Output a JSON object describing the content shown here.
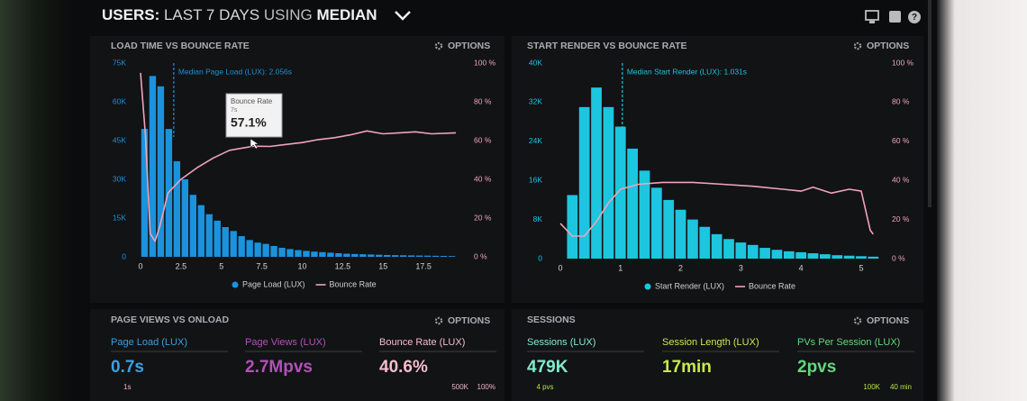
{
  "header": {
    "prefix": "USERS:",
    "range": "LAST 7 DAYS",
    "connector": "USING",
    "method": "MEDIAN"
  },
  "options_label": "OPTIONS",
  "chart_data": [
    {
      "type": "histogram",
      "title": "LOAD TIME VS BOUNCE RATE",
      "bins": [
        0,
        0.5,
        1,
        1.5,
        2,
        2.5,
        3,
        3.5,
        4,
        4.5,
        5,
        5.5,
        6,
        6.5,
        7,
        7.5,
        8,
        8.5,
        9,
        9.5,
        10,
        10.5,
        11,
        11.5,
        12,
        12.5,
        13,
        13.5,
        14,
        14.5,
        15,
        15.5,
        16,
        16.5,
        17,
        17.5,
        18,
        18.5,
        19,
        19.5
      ],
      "series": [
        {
          "name": "Page Load (LUX)",
          "color": "#1b92dc",
          "values": [
            49500,
            70000,
            66000,
            49500,
            37000,
            30000,
            24000,
            20000,
            16500,
            14000,
            11500,
            10000,
            8000,
            6500,
            5500,
            5000,
            4200,
            3500,
            3000,
            2600,
            2300,
            2000,
            1800,
            1600,
            1400,
            1200,
            1100,
            1000,
            900,
            800,
            700,
            650,
            600,
            550,
            500,
            450,
            400,
            350,
            300
          ]
        },
        {
          "name": "Bounce Rate",
          "color": "#f0a4b8",
          "axis": "y2",
          "x": [
            0,
            0.3,
            0.6,
            0.9,
            1.2,
            1.7,
            2.5,
            3.5,
            4.5,
            5.5,
            7,
            8,
            9,
            10,
            11,
            12,
            13,
            14,
            15,
            16,
            17,
            18,
            19.5
          ],
          "values": [
            95,
            63,
            12,
            8,
            16,
            33,
            40,
            46,
            51,
            55,
            57.1,
            57,
            58,
            59,
            60.5,
            61.5,
            63,
            65,
            63.5,
            64,
            64.5,
            63.5,
            64
          ]
        }
      ],
      "xlim": [
        -0.5,
        20
      ],
      "xticks": [
        0,
        2.5,
        5,
        7.5,
        10,
        12.5,
        15,
        17.5
      ],
      "ylim": [
        0,
        75000
      ],
      "yticks": [
        {
          "value": 0,
          "label": "0"
        },
        {
          "value": 15000,
          "label": "15K"
        },
        {
          "value": 30000,
          "label": "30K"
        },
        {
          "value": 45000,
          "label": "45K"
        },
        {
          "value": 60000,
          "label": "60K"
        },
        {
          "value": 75000,
          "label": "75K"
        }
      ],
      "y2lim": [
        0,
        100
      ],
      "y2ticks": [
        {
          "value": 0,
          "label": "0 %"
        },
        {
          "value": 20,
          "label": "20 %"
        },
        {
          "value": 40,
          "label": "40 %"
        },
        {
          "value": 60,
          "label": "60 %"
        },
        {
          "value": 80,
          "label": "80 %"
        },
        {
          "value": 100,
          "label": "100 %"
        }
      ],
      "median": 2.056,
      "median_label": "Median Page Load (LUX): 2.056s",
      "tooltip": {
        "title": "Bounce Rate",
        "subtitle": "7s",
        "value": "57.1%"
      },
      "grid": false
    },
    {
      "type": "histogram",
      "title": "START RENDER VS BOUNCE RATE",
      "bins": [
        0.1,
        0.3,
        0.5,
        0.7,
        0.9,
        1.1,
        1.3,
        1.5,
        1.7,
        1.9,
        2.1,
        2.3,
        2.5,
        2.7,
        2.9,
        3.1,
        3.3,
        3.5,
        3.7,
        3.9,
        4.1,
        4.3,
        4.5,
        4.7,
        4.9,
        5.1,
        5.3
      ],
      "series": [
        {
          "name": "Start Render (LUX)",
          "color": "#1cc6de",
          "values": [
            13000,
            31000,
            35000,
            31000,
            27000,
            22500,
            18000,
            14500,
            12000,
            10000,
            8000,
            6500,
            5000,
            4000,
            3300,
            2800,
            2200,
            1800,
            1500,
            1300,
            1100,
            900,
            700,
            600,
            500,
            400
          ]
        },
        {
          "name": "Bounce Rate",
          "color": "#f0a4b8",
          "axis": "y2",
          "x": [
            0,
            0.2,
            0.4,
            0.6,
            0.8,
            1.0,
            1.3,
            1.7,
            2.2,
            2.7,
            3.2,
            3.7,
            4.0,
            4.2,
            4.5,
            4.8,
            5.0,
            5.15,
            5.2
          ],
          "values": [
            18,
            11.5,
            11.5,
            19,
            28.5,
            35.5,
            38,
            39,
            39,
            38,
            37,
            35.5,
            34.5,
            36.5,
            33.5,
            35.5,
            34.5,
            14.5,
            12.5
          ]
        }
      ],
      "xlim": [
        -0.2,
        5.3
      ],
      "xticks": [
        0,
        1,
        2,
        3,
        4,
        5
      ],
      "ylim": [
        0,
        40000
      ],
      "yticks": [
        {
          "value": 0,
          "label": "0"
        },
        {
          "value": 8000,
          "label": "8K"
        },
        {
          "value": 16000,
          "label": "16K"
        },
        {
          "value": 24000,
          "label": "24K"
        },
        {
          "value": 32000,
          "label": "32K"
        },
        {
          "value": 40000,
          "label": "40K"
        }
      ],
      "y2lim": [
        0,
        100
      ],
      "y2ticks": [
        {
          "value": 0,
          "label": "0 %"
        },
        {
          "value": 20,
          "label": "20 %"
        },
        {
          "value": 40,
          "label": "40 %"
        },
        {
          "value": 60,
          "label": "60 %"
        },
        {
          "value": 80,
          "label": "80 %"
        },
        {
          "value": 100,
          "label": "100 %"
        }
      ],
      "median": 1.031,
      "median_label": "Median Start Render (LUX): 1.031s",
      "grid": false
    }
  ],
  "panels": [
    {
      "title": "PAGE VIEWS VS ONLOAD",
      "stats": [
        {
          "label": "Page Load (LUX)",
          "value": "0.7s",
          "color": "#3b9fe0",
          "notes": [
            "1s"
          ]
        },
        {
          "label": "Page Views (LUX)",
          "value": "2.7Mpvs",
          "color": "#b451b8"
        },
        {
          "label": "Bounce Rate (LUX)",
          "value": "40.6%",
          "color": "#f6bccb",
          "notes": [
            "500K",
            "100%"
          ]
        }
      ]
    },
    {
      "title": "SESSIONS",
      "stats": [
        {
          "label": "Sessions (LUX)",
          "value": "479K",
          "color": "#82ebcb",
          "notes": [
            "4 pvs"
          ]
        },
        {
          "label": "Session Length (LUX)",
          "value": "17min",
          "color": "#c8e94c"
        },
        {
          "label": "PVs Per Session (LUX)",
          "value": "2pvs",
          "color": "#62d77d",
          "notes": [
            "100K",
            "40 min"
          ]
        }
      ]
    }
  ]
}
